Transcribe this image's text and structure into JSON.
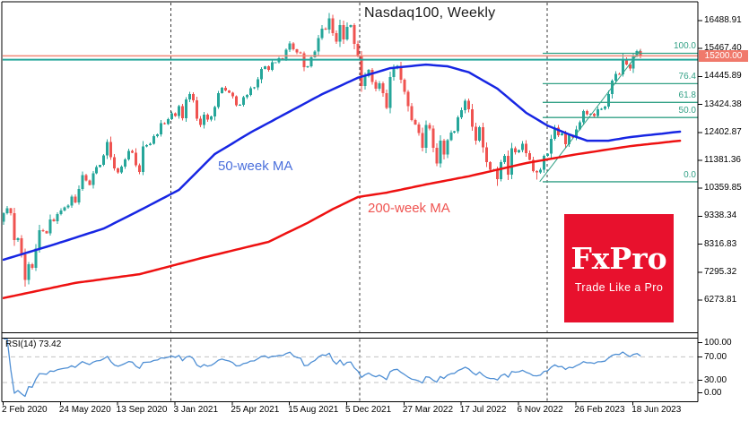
{
  "title": "Nasdaq100, Weekly",
  "labels": {
    "ma50": "50-week MA",
    "ma200": "200-week MA",
    "rsi": "RSI(14) 73.42"
  },
  "branding": {
    "logo_text": "FxPro",
    "tagline": "Trade Like a Pro",
    "logo_bg": "#e8112d"
  },
  "colors": {
    "bull": "#26a69a",
    "bear": "#ef5350",
    "ma50_line": "#1726e3",
    "ma200_line": "#ee1111",
    "fib": "#33a186",
    "price_line": "#f28878",
    "support_line": "#26a69a",
    "rsi_line": "#4f8fd4",
    "grid": "#3a3a3a",
    "rsi_levels": "#c9c9c9",
    "badge_bg": "#f0796b",
    "border": "#000000"
  },
  "price_axis": {
    "labels": [
      "16488.91",
      "15467.40",
      "14445.89",
      "13424.38",
      "12402.87",
      "11381.36",
      "10359.85",
      "9338.34",
      "8316.83",
      "7295.32",
      "6273.81"
    ],
    "current_price": "15200.00"
  },
  "time_axis": {
    "labels": [
      "2 Feb 2020",
      "24 May 2020",
      "13 Sep 2020",
      "3 Jan 2021",
      "25 Apr 2021",
      "15 Aug 2021",
      "5 Dec 2021",
      "27 Mar 2022",
      "17 Jul 2022",
      "6 Nov 2022",
      "26 Feb 2023",
      "18 Jun 2023"
    ]
  },
  "rsi_axis": {
    "labels": [
      "100.00",
      "70.00",
      "30.00",
      "0.00"
    ]
  },
  "chart_data": {
    "type": "candlestick",
    "symbol": "Nasdaq100",
    "interval": "weekly",
    "title": "Nasdaq100, Weekly",
    "x_range": [
      "2 Feb 2020",
      "mid Jul 2023"
    ],
    "y_tick_values": [
      16488.91,
      15467.4,
      14445.89,
      13424.38,
      12402.87,
      11381.36,
      10359.85,
      9338.34,
      8316.83,
      7295.32,
      6273.81
    ],
    "first_open": 9139,
    "closes": [
      9446,
      9623,
      9447,
      8461,
      8530,
      7950,
      7006,
      7588,
      7453,
      8154,
      8832,
      8787,
      8718,
      9220,
      9152,
      9413,
      9555,
      9662,
      9733,
      10056,
      9849,
      10341,
      10836,
      10645,
      10483,
      10906,
      11139,
      11210,
      11555,
      12046,
      11490,
      11087,
      10936,
      11151,
      11418,
      11726,
      11662,
      11205,
      10957,
      11890,
      11939,
      11986,
      12258,
      12339,
      12738,
      12711,
      12888,
      13105,
      12998,
      13366,
      12925,
      13603,
      13807,
      13580,
      12909,
      12668,
      13059,
      12866,
      12979,
      13330,
      13845,
      14041,
      13941,
      13860,
      13719,
      13393,
      13417,
      13686,
      13770,
      14020,
      14049,
      14345,
      14727,
      14826,
      14681,
      14959,
      14960,
      15109,
      15092,
      15432,
      15653,
      15440,
      15334,
      15297,
      14792,
      14820,
      15147,
      15355,
      15850,
      16200,
      16168,
      16573,
      16026,
      15712,
      16332,
      15802,
      16266,
      16320,
      15645,
      15208,
      14091,
      14454,
      14694,
      14253,
      13995,
      14189,
      13837,
      13301,
      14420,
      14754,
      14839,
      14328,
      13893,
      13356,
      12855,
      12693,
      12388,
      11836,
      12681,
      12548,
      11833,
      11266,
      12106,
      11586,
      12120,
      12392,
      12441,
      12948,
      13207,
      13565,
      13243,
      12605,
      12098,
      12588,
      11861,
      11311,
      11039,
      11039,
      10690,
      11310,
      11546,
      10857,
      11817,
      11677,
      11756,
      11994,
      11637,
      11404,
      10985,
      10939,
      11040,
      11541,
      11619,
      12166,
      12573,
      12304,
      12358,
      11969,
      12291,
      12220,
      12519,
      12767,
      13181,
      13062,
      13079,
      12998,
      13246,
      13259,
      13341,
      13803,
      14298,
      14547,
      14528,
      15083,
      14891,
      14732,
      15208,
      15380,
      15200
    ],
    "wick_overrides": {
      "6": {
        "low": 6772
      },
      "91": {
        "high": 16765
      },
      "138": {
        "low": 10441
      },
      "149": {
        "low": 10672
      },
      "173": {
        "high": 15284
      },
      "178": {
        "high": 15460,
        "low": 15120
      }
    },
    "current_price": 15200.0,
    "horizontal_lines": {
      "price_line": 15200,
      "support_line": 15060
    },
    "fibonacci": {
      "anchor_low": 10597,
      "anchor_high": 15294,
      "levels": [
        {
          "label": "100.0",
          "value": 15294
        },
        {
          "label": "76.4",
          "value": 14186
        },
        {
          "label": "61.8",
          "value": 13500
        },
        {
          "label": "50.0",
          "value": 12946
        },
        {
          "label": "0.0",
          "value": 10597
        }
      ]
    },
    "trend_line": {
      "from_week": 149.8,
      "from_price": 10600,
      "to_week": 178,
      "to_price": 15420
    },
    "ma50_points": [
      [
        0,
        7750
      ],
      [
        14,
        8300
      ],
      [
        28,
        8890
      ],
      [
        38,
        9550
      ],
      [
        49,
        10300
      ],
      [
        59,
        11610
      ],
      [
        69,
        12400
      ],
      [
        79,
        13100
      ],
      [
        89,
        13800
      ],
      [
        99,
        14400
      ],
      [
        108,
        14750
      ],
      [
        118,
        14880
      ],
      [
        124,
        14820
      ],
      [
        130,
        14600
      ],
      [
        138,
        14000
      ],
      [
        146,
        13120
      ],
      [
        152,
        12650
      ],
      [
        158,
        12330
      ],
      [
        163,
        12100
      ],
      [
        169,
        12100
      ],
      [
        175,
        12230
      ],
      [
        182,
        12330
      ],
      [
        189,
        12430
      ]
    ],
    "ma200_points": [
      [
        0,
        6350
      ],
      [
        20,
        6900
      ],
      [
        38,
        7220
      ],
      [
        55,
        7800
      ],
      [
        74,
        8400
      ],
      [
        85,
        9100
      ],
      [
        92,
        9600
      ],
      [
        99,
        10040
      ],
      [
        107,
        10200
      ],
      [
        118,
        10500
      ],
      [
        130,
        10800
      ],
      [
        146,
        11280
      ],
      [
        160,
        11600
      ],
      [
        175,
        11900
      ],
      [
        182,
        12000
      ],
      [
        189,
        12100
      ]
    ],
    "rsi": {
      "period": 14,
      "last_value": 73.42,
      "overbought": 70,
      "oversold": 30,
      "scale_values": [
        100,
        70,
        30,
        0
      ]
    }
  }
}
